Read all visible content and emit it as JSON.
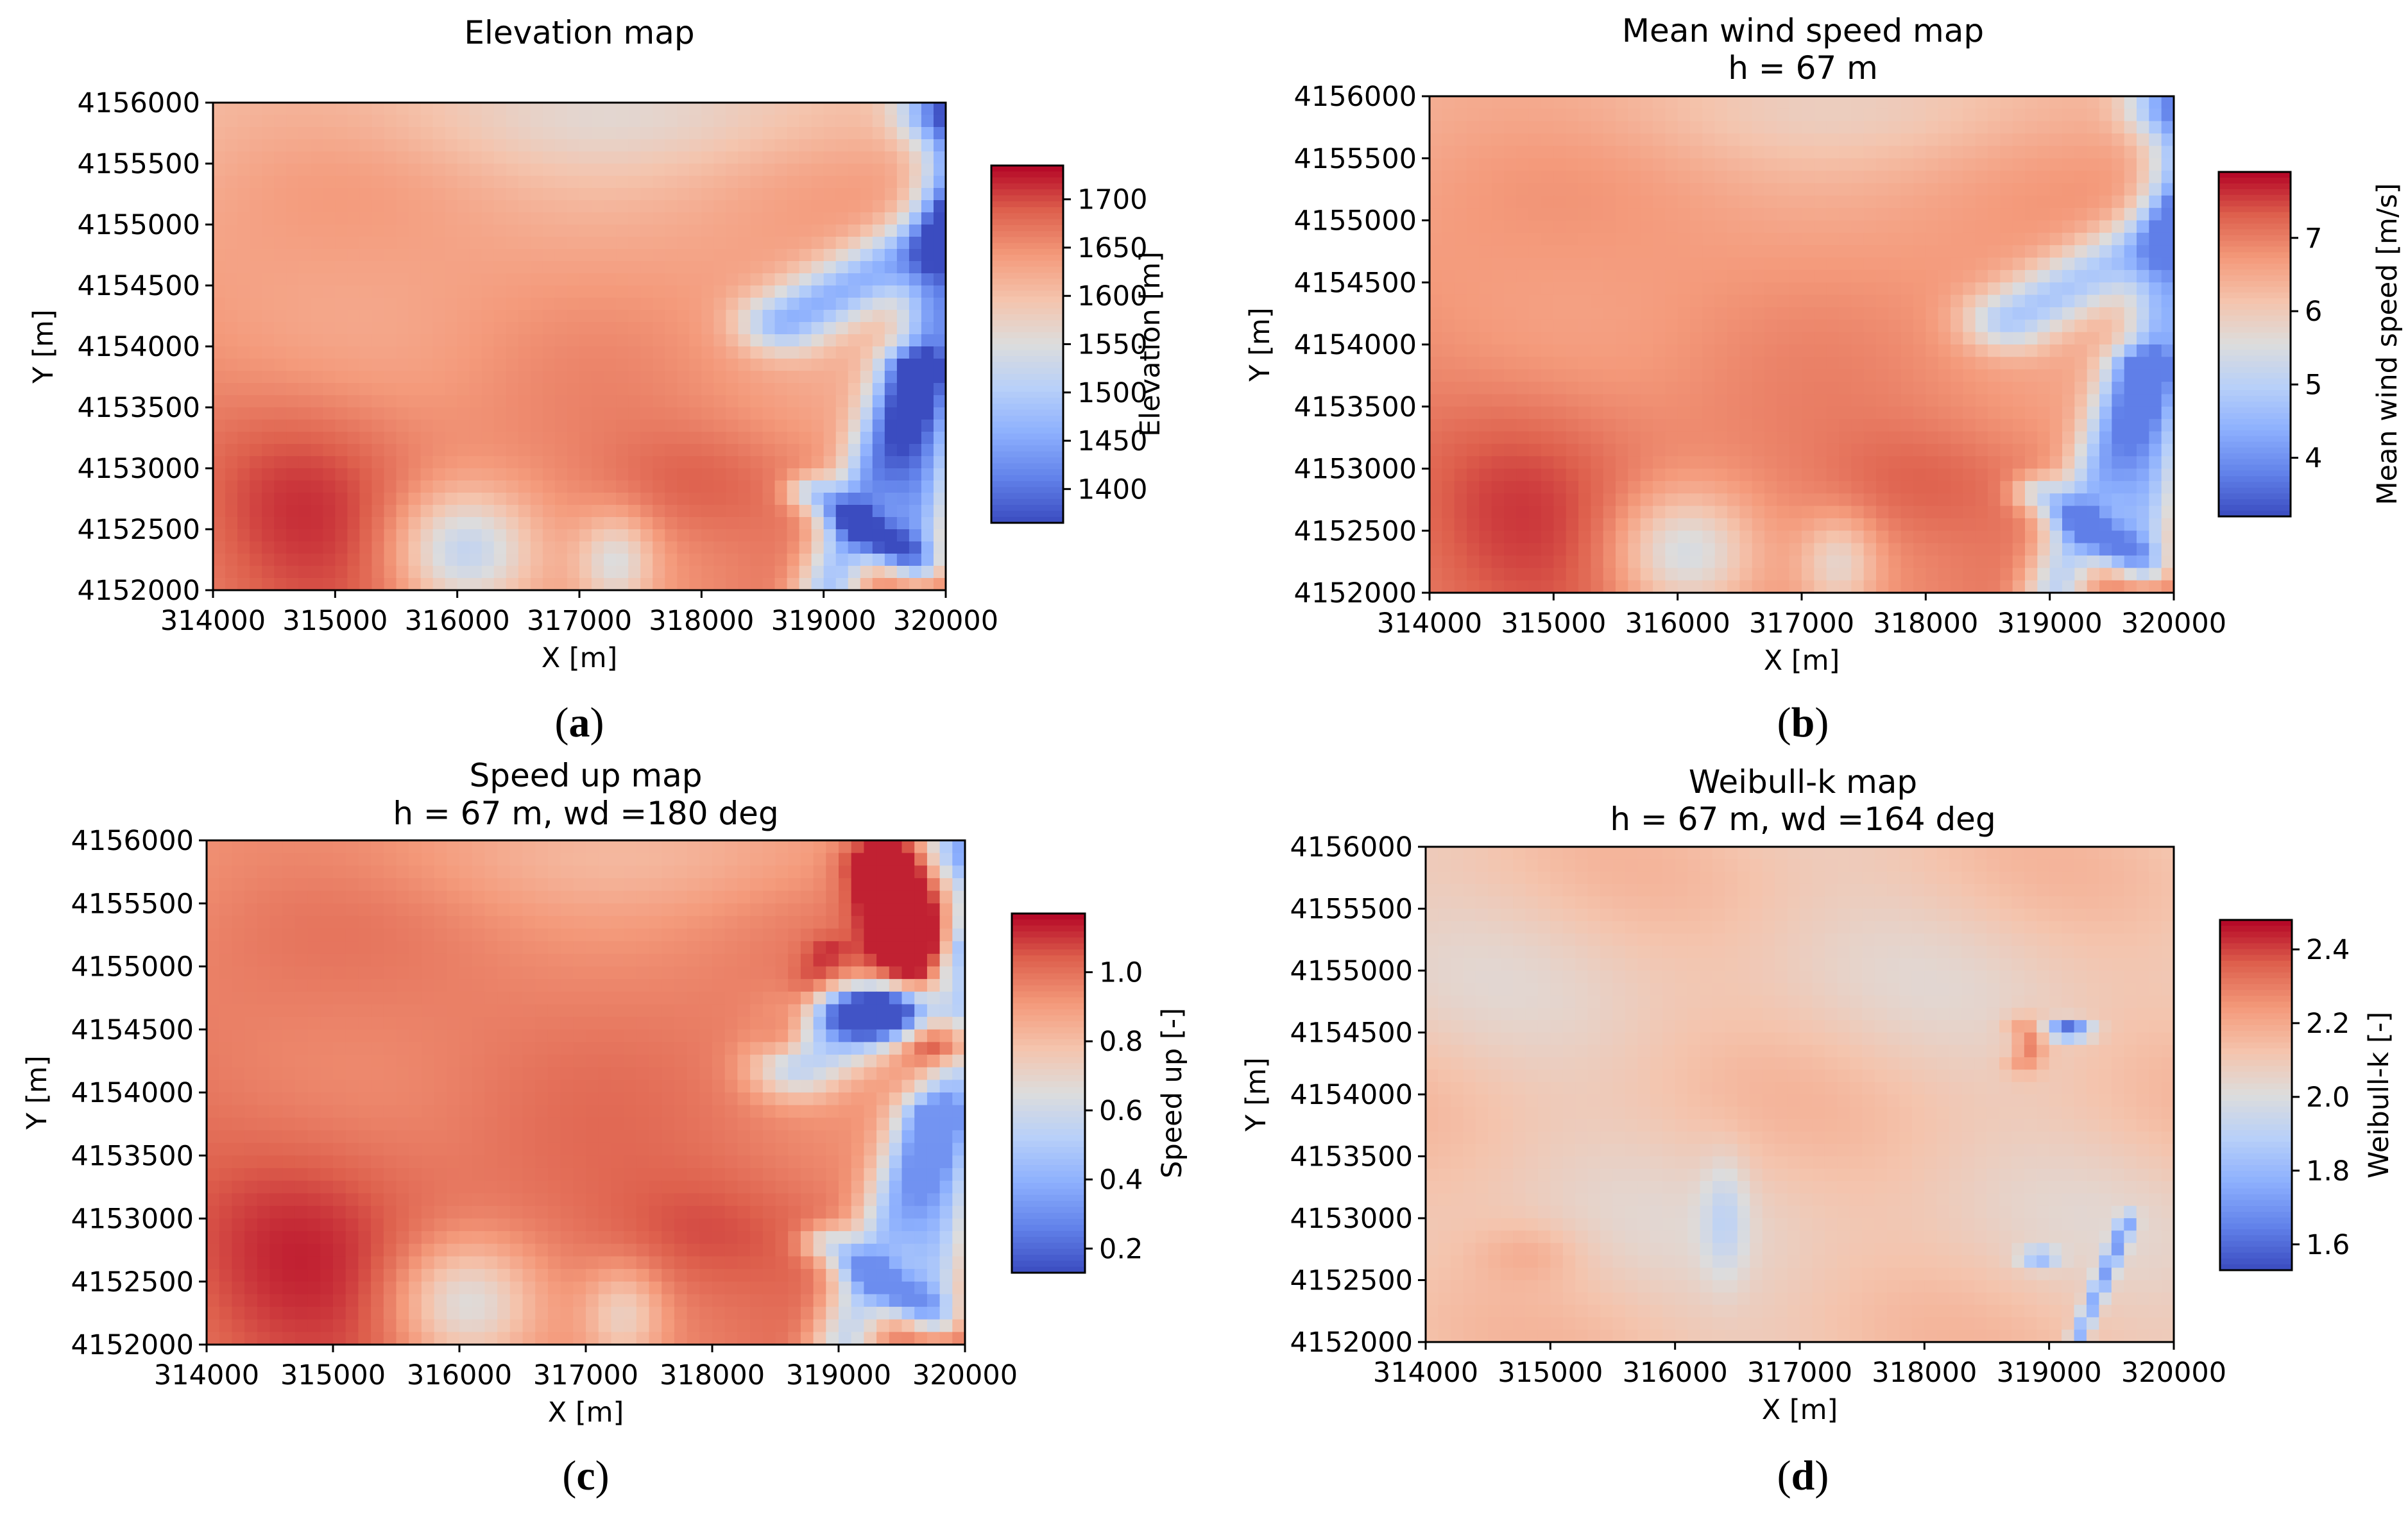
{
  "colormap": "coolwarm",
  "colors": {
    "low": "#3b4cc0",
    "mid": "#dddddd",
    "high": "#b40426"
  },
  "chart_data": [
    {
      "type": "heatmap",
      "panel_label": "a",
      "title": "Elevation map",
      "subtitle": "",
      "xlabel": "X [m]",
      "ylabel": "Y [m]",
      "xlim": [
        314000,
        320000
      ],
      "ylim": [
        4152000,
        4156000
      ],
      "xticks": [
        "314000",
        "315000",
        "316000",
        "317000",
        "318000",
        "319000",
        "320000"
      ],
      "yticks": [
        "4152000",
        "4152500",
        "4153000",
        "4153500",
        "4154000",
        "4154500",
        "4155000",
        "4155500",
        "4156000"
      ],
      "colorbar": {
        "label": "Elevation [m]",
        "range": [
          1365,
          1735
        ],
        "ticks": [
          "1400",
          "1450",
          "1500",
          "1550",
          "1600",
          "1650",
          "1700"
        ]
      },
      "field": "elevation"
    },
    {
      "type": "heatmap",
      "panel_label": "b",
      "title": "Mean wind speed map",
      "subtitle": "h = 67 m",
      "xlabel": "X [m]",
      "ylabel": "Y [m]",
      "xlim": [
        314000,
        320000
      ],
      "ylim": [
        4152000,
        4156000
      ],
      "xticks": [
        "314000",
        "315000",
        "316000",
        "317000",
        "318000",
        "319000",
        "320000"
      ],
      "yticks": [
        "4152000",
        "4152500",
        "4153000",
        "4153500",
        "4154000",
        "4154500",
        "4155000",
        "4155500",
        "4156000"
      ],
      "colorbar": {
        "label": "Mean wind speed [m/s]",
        "range": [
          3.2,
          7.9
        ],
        "ticks": [
          "4",
          "5",
          "6",
          "7"
        ]
      },
      "field": "wind"
    },
    {
      "type": "heatmap",
      "panel_label": "c",
      "title": "Speed up map",
      "subtitle": "h = 67 m, wd =180 deg",
      "xlabel": "X [m]",
      "ylabel": "Y [m]",
      "xlim": [
        314000,
        320000
      ],
      "ylim": [
        4152000,
        4156000
      ],
      "xticks": [
        "314000",
        "315000",
        "316000",
        "317000",
        "318000",
        "319000",
        "320000"
      ],
      "yticks": [
        "4152000",
        "4152500",
        "4153000",
        "4153500",
        "4154000",
        "4154500",
        "4155000",
        "4155500",
        "4156000"
      ],
      "colorbar": {
        "label": "Speed up [-]",
        "range": [
          0.13,
          1.17
        ],
        "ticks": [
          "0.2",
          "0.4",
          "0.6",
          "0.8",
          "1.0"
        ]
      },
      "field": "speedup"
    },
    {
      "type": "heatmap",
      "panel_label": "d",
      "title": "Weibull-k map",
      "subtitle": "h = 67 m, wd =164 deg",
      "xlabel": "X [m]",
      "ylabel": "Y [m]",
      "xlim": [
        314000,
        320000
      ],
      "ylim": [
        4152000,
        4156000
      ],
      "xticks": [
        "314000",
        "315000",
        "316000",
        "317000",
        "318000",
        "319000",
        "320000"
      ],
      "yticks": [
        "4152000",
        "4152500",
        "4153000",
        "4153500",
        "4154000",
        "4154500",
        "4155000",
        "4155500",
        "4156000"
      ],
      "colorbar": {
        "label": "Weibull-k [-]",
        "range": [
          1.53,
          2.48
        ],
        "ticks": [
          "1.6",
          "1.8",
          "2.0",
          "2.2",
          "2.4"
        ]
      },
      "field": "weibull"
    }
  ]
}
